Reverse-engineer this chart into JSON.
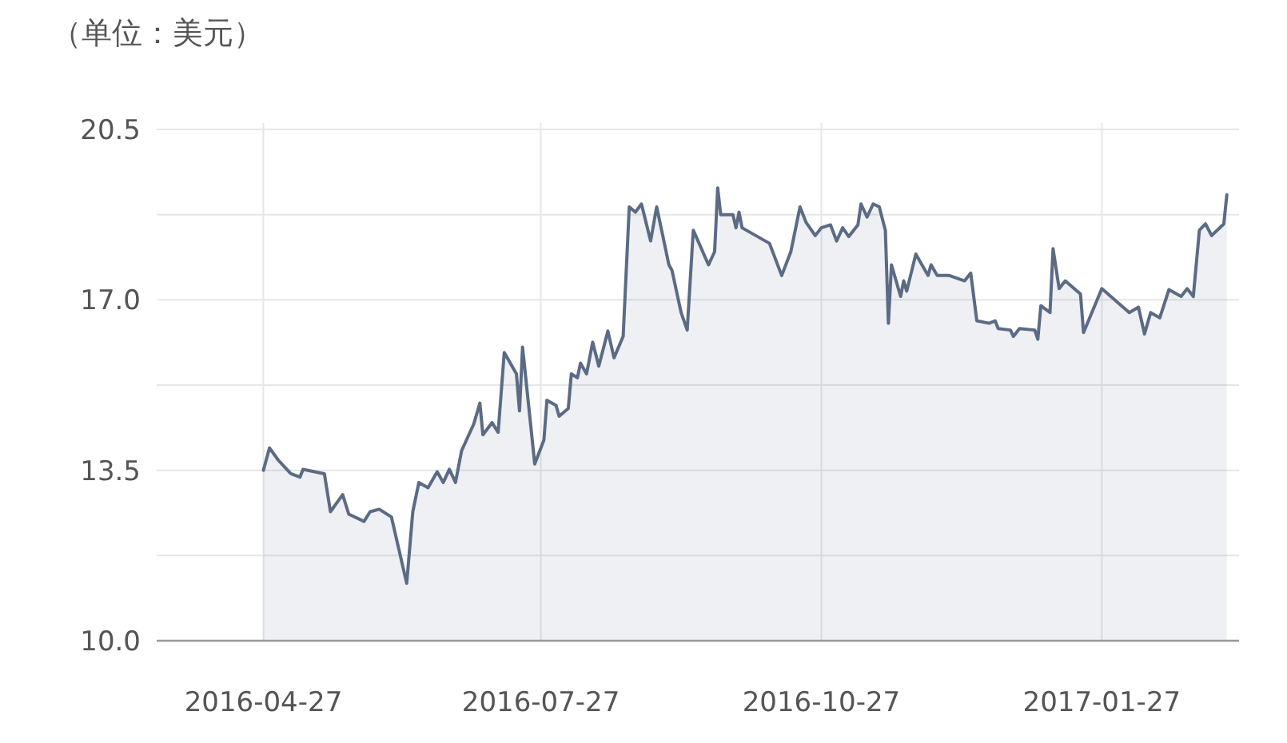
{
  "chart_data": {
    "type": "area",
    "ylabel": "（单位：美元）",
    "x": [
      "2016-04-27",
      "2016-04-29",
      "2016-05-02",
      "2016-05-06",
      "2016-05-09",
      "2016-05-10",
      "2016-05-17",
      "2016-05-19",
      "2016-05-23",
      "2016-05-25",
      "2016-05-30",
      "2016-06-01",
      "2016-06-04",
      "2016-06-08",
      "2016-06-13",
      "2016-06-15",
      "2016-06-17",
      "2016-06-20",
      "2016-06-23",
      "2016-06-25",
      "2016-06-27",
      "2016-06-29",
      "2016-07-01",
      "2016-07-05",
      "2016-07-07",
      "2016-07-08",
      "2016-07-11",
      "2016-07-13",
      "2016-07-15",
      "2016-07-19",
      "2016-07-20",
      "2016-07-21",
      "2016-07-25",
      "2016-07-28",
      "2016-07-29",
      "2016-08-01",
      "2016-08-02",
      "2016-08-05",
      "2016-08-06",
      "2016-08-08",
      "2016-08-09",
      "2016-08-11",
      "2016-08-13",
      "2016-08-15",
      "2016-08-18",
      "2016-08-20",
      "2016-08-23",
      "2016-08-25",
      "2016-08-27",
      "2016-08-29",
      "2016-09-01",
      "2016-09-03",
      "2016-09-07",
      "2016-09-08",
      "2016-09-11",
      "2016-09-13",
      "2016-09-15",
      "2016-09-20",
      "2016-09-22",
      "2016-09-23",
      "2016-09-24",
      "2016-09-28",
      "2016-09-29",
      "2016-09-30",
      "2016-10-01",
      "2016-10-10",
      "2016-10-14",
      "2016-10-17",
      "2016-10-20",
      "2016-10-22",
      "2016-10-25",
      "2016-10-27",
      "2016-10-30",
      "2016-11-01",
      "2016-11-03",
      "2016-11-05",
      "2016-11-08",
      "2016-11-09",
      "2016-11-11",
      "2016-11-13",
      "2016-11-15",
      "2016-11-17",
      "2016-11-18",
      "2016-11-19",
      "2016-11-22",
      "2016-11-23",
      "2016-11-24",
      "2016-11-27",
      "2016-11-29",
      "2016-12-01",
      "2016-12-02",
      "2016-12-04",
      "2016-12-08",
      "2016-12-13",
      "2016-12-15",
      "2016-12-17",
      "2016-12-21",
      "2016-12-23",
      "2016-12-24",
      "2016-12-28",
      "2016-12-29",
      "2016-12-31",
      "2017-01-05",
      "2017-01-06",
      "2017-01-07",
      "2017-01-10",
      "2017-01-11",
      "2017-01-13",
      "2017-01-15",
      "2017-01-20",
      "2017-01-21",
      "2017-01-27",
      "2017-02-05",
      "2017-02-08",
      "2017-02-10",
      "2017-02-12",
      "2017-02-15",
      "2017-02-18",
      "2017-02-22",
      "2017-02-24",
      "2017-02-26",
      "2017-02-28",
      "2017-03-02",
      "2017-03-04",
      "2017-03-08",
      "2017-03-09"
    ],
    "series": [
      {
        "color": "#5b6b85",
        "values": [
          13.5,
          13.96,
          13.7,
          13.43,
          13.36,
          13.52,
          13.43,
          12.65,
          13.0,
          12.6,
          12.45,
          12.65,
          12.7,
          12.54,
          11.18,
          12.65,
          13.25,
          13.14,
          13.47,
          13.25,
          13.52,
          13.25,
          13.9,
          14.45,
          14.88,
          14.23,
          14.48,
          14.28,
          15.92,
          15.48,
          14.72,
          16.03,
          13.63,
          14.12,
          14.94,
          14.83,
          14.61,
          14.77,
          15.48,
          15.4,
          15.7,
          15.48,
          16.13,
          15.64,
          16.36,
          15.81,
          16.25,
          18.91,
          18.8,
          18.97,
          18.21,
          18.91,
          17.72,
          17.61,
          16.74,
          16.38,
          18.43,
          17.72,
          17.99,
          19.3,
          18.75,
          18.75,
          18.48,
          18.8,
          18.48,
          18.16,
          17.5,
          17.99,
          18.91,
          18.59,
          18.32,
          18.48,
          18.54,
          18.21,
          18.48,
          18.3,
          18.54,
          18.97,
          18.7,
          18.97,
          18.91,
          18.43,
          16.52,
          17.72,
          17.07,
          17.39,
          17.18,
          17.94,
          17.72,
          17.5,
          17.72,
          17.5,
          17.5,
          17.39,
          17.55,
          16.57,
          16.52,
          16.57,
          16.41,
          16.38,
          16.25,
          16.41,
          16.38,
          16.19,
          16.88,
          16.74,
          18.05,
          17.23,
          17.39,
          17.12,
          16.33,
          17.23,
          16.74,
          16.85,
          16.3,
          16.74,
          16.63,
          17.21,
          17.07,
          17.23,
          17.07,
          18.43,
          18.56,
          18.32,
          18.56,
          19.16
        ]
      }
    ],
    "xlim": [
      "2016-03-23",
      "2017-03-13"
    ],
    "xticks": [
      "2016-04-27",
      "2016-07-27",
      "2016-10-27",
      "2017-01-27"
    ],
    "ylim": [
      10,
      20.5
    ],
    "yticks": [
      {
        "value": 10,
        "label": "10.0"
      },
      {
        "value": 11.75,
        "label": null
      },
      {
        "value": 13.5,
        "label": "13.5"
      },
      {
        "value": 15.25,
        "label": null
      },
      {
        "value": 17,
        "label": "17.0"
      },
      {
        "value": 18.75,
        "label": null
      },
      {
        "value": 20.5,
        "label": "20.5"
      }
    ],
    "grid": true
  }
}
